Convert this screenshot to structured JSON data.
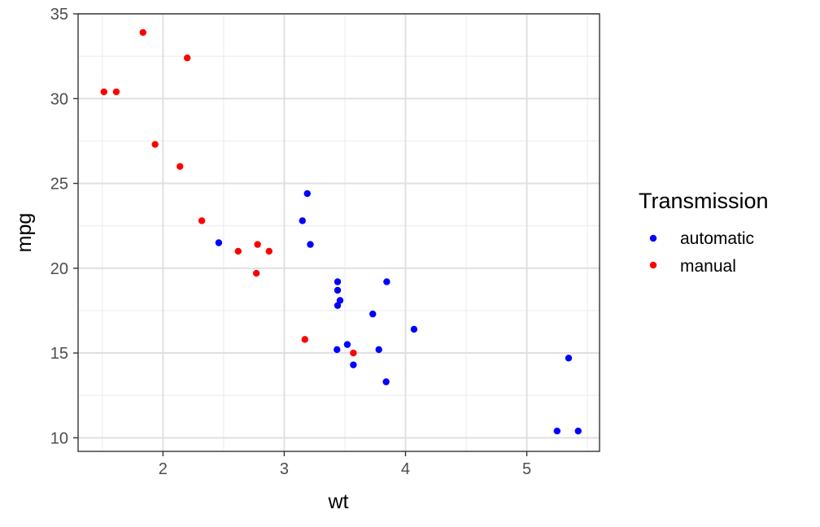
{
  "chart_data": {
    "type": "scatter",
    "title": "",
    "xlabel": "wt",
    "ylabel": "mpg",
    "xlim": [
      1.3,
      5.6
    ],
    "ylim": [
      9.2,
      35.0
    ],
    "x_ticks": [
      2,
      3,
      4,
      5
    ],
    "y_ticks": [
      10,
      15,
      20,
      25,
      30,
      35
    ],
    "grid": true,
    "legend": {
      "title": "Transmission",
      "position": "right"
    },
    "series": [
      {
        "name": "automatic",
        "color": "#0000ff",
        "points": [
          [
            2.46,
            21.5
          ],
          [
            3.15,
            22.8
          ],
          [
            3.19,
            24.4
          ],
          [
            3.215,
            21.4
          ],
          [
            3.44,
            19.2
          ],
          [
            3.44,
            18.7
          ],
          [
            3.44,
            17.8
          ],
          [
            3.46,
            18.1
          ],
          [
            3.845,
            19.2
          ],
          [
            3.73,
            17.3
          ],
          [
            4.07,
            16.4
          ],
          [
            3.435,
            15.2
          ],
          [
            3.52,
            15.5
          ],
          [
            3.78,
            15.2
          ],
          [
            3.57,
            14.3
          ],
          [
            3.84,
            13.3
          ],
          [
            5.345,
            14.7
          ],
          [
            5.25,
            10.4
          ],
          [
            5.424,
            10.4
          ]
        ]
      },
      {
        "name": "manual",
        "color": "#ff0000",
        "points": [
          [
            1.835,
            33.9
          ],
          [
            2.2,
            32.4
          ],
          [
            1.513,
            30.4
          ],
          [
            1.615,
            30.4
          ],
          [
            1.935,
            27.3
          ],
          [
            2.14,
            26.0
          ],
          [
            2.32,
            22.8
          ],
          [
            2.62,
            21.0
          ],
          [
            2.77,
            19.7
          ],
          [
            2.78,
            21.4
          ],
          [
            2.875,
            21.0
          ],
          [
            3.17,
            15.8
          ],
          [
            3.57,
            15.0
          ]
        ]
      }
    ]
  }
}
